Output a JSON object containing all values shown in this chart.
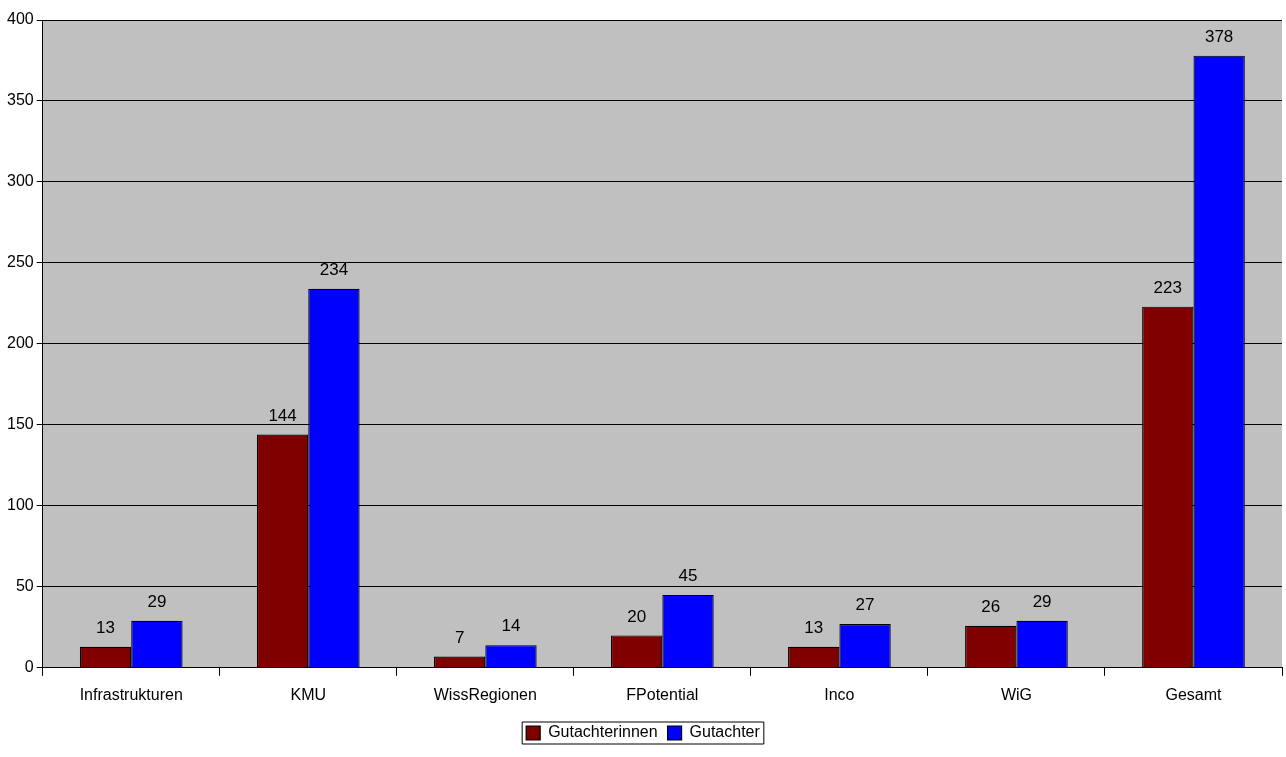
{
  "chart_data": {
    "type": "bar",
    "categories": [
      "Infrastrukturen",
      "KMU",
      "WissRegionen",
      "FPotential",
      "Inco",
      "WiG",
      "Gesamt"
    ],
    "series": [
      {
        "name": "Gutachterinnen",
        "color": "#800000",
        "values": [
          13,
          144,
          7,
          20,
          13,
          26,
          223
        ]
      },
      {
        "name": "Gutachter",
        "color": "#0000ff",
        "values": [
          29,
          234,
          14,
          45,
          27,
          29,
          378
        ]
      }
    ],
    "ylim": [
      0,
      400
    ],
    "yticks": [
      0,
      50,
      100,
      150,
      200,
      250,
      300,
      350,
      400
    ],
    "grid": "y",
    "legend": "bottom",
    "data_labels": true
  }
}
